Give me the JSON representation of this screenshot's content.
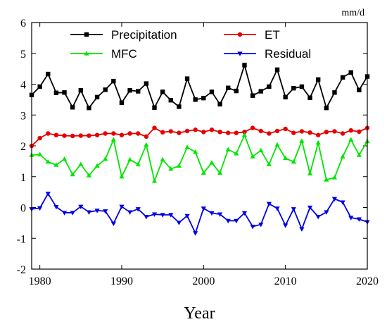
{
  "chart_data": {
    "type": "line",
    "unit": "mm/d",
    "xlabel": "Year",
    "ylabel": "",
    "xlim": [
      1979,
      2020
    ],
    "ylim": [
      -2,
      6
    ],
    "x_ticks": [
      1980,
      1990,
      2000,
      2010,
      2020
    ],
    "y_ticks": [
      -2,
      -1,
      0,
      1,
      2,
      3,
      4,
      5,
      6
    ],
    "grid": false,
    "legend_position": "top",
    "x": [
      1979,
      1980,
      1981,
      1982,
      1983,
      1984,
      1985,
      1986,
      1987,
      1988,
      1989,
      1990,
      1991,
      1992,
      1993,
      1994,
      1995,
      1996,
      1997,
      1998,
      1999,
      2000,
      2001,
      2002,
      2003,
      2004,
      2005,
      2006,
      2007,
      2008,
      2009,
      2010,
      2011,
      2012,
      2013,
      2014,
      2015,
      2016,
      2017,
      2018,
      2019,
      2020
    ],
    "series": [
      {
        "name": "Precipitation",
        "color": "#000000",
        "marker": "square",
        "values": [
          3.65,
          3.92,
          4.33,
          3.72,
          3.73,
          3.25,
          3.8,
          3.23,
          3.58,
          3.82,
          4.1,
          3.4,
          3.8,
          3.77,
          4.02,
          3.24,
          3.75,
          3.48,
          3.27,
          4.18,
          3.5,
          3.55,
          3.75,
          3.35,
          3.88,
          3.78,
          4.62,
          3.63,
          3.77,
          3.92,
          4.47,
          3.58,
          3.87,
          3.92,
          3.56,
          4.15,
          3.23,
          3.73,
          4.22,
          4.38,
          3.81,
          4.25
        ]
      },
      {
        "name": "ET",
        "color": "#e60000",
        "marker": "circle",
        "values": [
          2.0,
          2.25,
          2.4,
          2.35,
          2.33,
          2.32,
          2.33,
          2.33,
          2.35,
          2.4,
          2.4,
          2.35,
          2.4,
          2.4,
          2.3,
          2.58,
          2.44,
          2.47,
          2.42,
          2.48,
          2.52,
          2.45,
          2.52,
          2.45,
          2.42,
          2.42,
          2.45,
          2.58,
          2.48,
          2.4,
          2.48,
          2.55,
          2.42,
          2.47,
          2.43,
          2.35,
          2.45,
          2.47,
          2.4,
          2.5,
          2.46,
          2.58
        ]
      },
      {
        "name": "MFC",
        "color": "#00e600",
        "marker": "triangle-up",
        "values": [
          1.7,
          1.72,
          1.48,
          1.38,
          1.57,
          1.07,
          1.4,
          1.04,
          1.35,
          1.57,
          2.2,
          1.0,
          1.55,
          1.4,
          2.03,
          0.86,
          1.55,
          1.25,
          1.35,
          1.95,
          1.8,
          1.12,
          1.45,
          1.12,
          1.88,
          1.75,
          2.35,
          1.65,
          1.85,
          1.4,
          2.03,
          1.6,
          1.48,
          2.16,
          1.1,
          2.1,
          0.9,
          0.97,
          1.65,
          2.2,
          1.7,
          2.15
        ]
      },
      {
        "name": "Residual",
        "color": "#0000e6",
        "marker": "triangle-down",
        "values": [
          -0.05,
          -0.02,
          0.45,
          0.02,
          -0.17,
          -0.17,
          0.03,
          -0.15,
          -0.1,
          -0.12,
          -0.52,
          0.03,
          -0.15,
          -0.05,
          -0.3,
          -0.22,
          -0.24,
          -0.24,
          -0.49,
          -0.27,
          -0.83,
          -0.03,
          -0.18,
          -0.22,
          -0.43,
          -0.43,
          -0.18,
          -0.62,
          -0.55,
          0.12,
          -0.03,
          -0.58,
          -0.05,
          -0.7,
          0.0,
          -0.3,
          -0.15,
          0.28,
          0.17,
          -0.33,
          -0.38,
          -0.47
        ]
      }
    ]
  }
}
